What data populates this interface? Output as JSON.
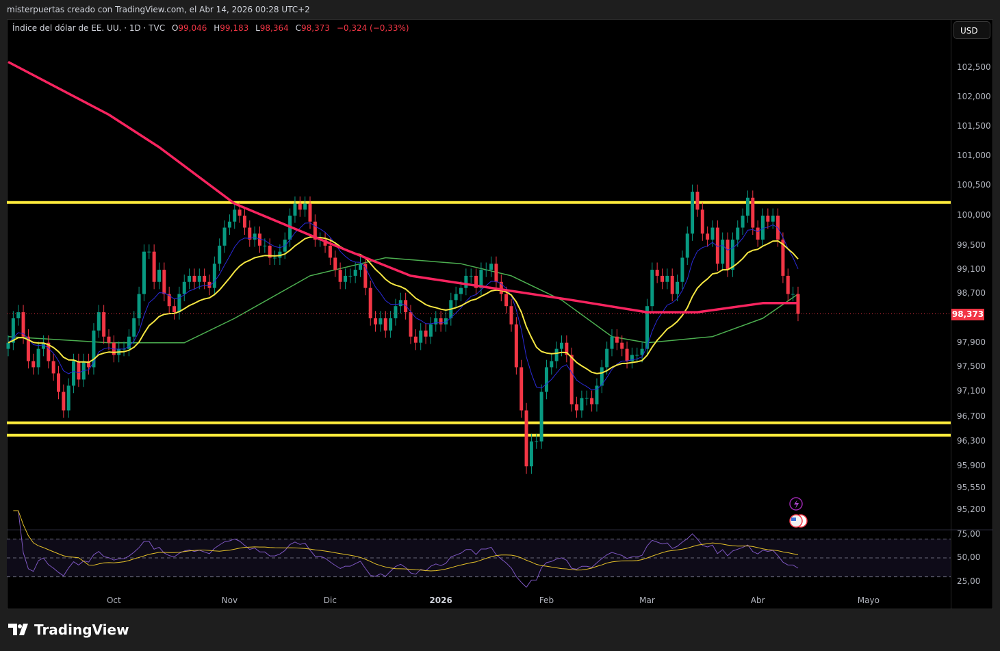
{
  "attribution": "misterpuertas creado con TradingView.com, el Abr 14, 2026 00:28 UTC+2",
  "legend": {
    "symbol": "Índice del dólar de EE. UU. · 1D · TVC",
    "o_label": "O",
    "o": "99,046",
    "h_label": "H",
    "h": "99,183",
    "l_label": "L",
    "l": "98,364",
    "c_label": "C",
    "c": "98,373",
    "change": "−0,324 (−0,33%)"
  },
  "currency_button": "USD",
  "last_price_label": "98,373",
  "brand": "TradingView",
  "colors": {
    "up": "#089981",
    "down": "#f23645",
    "ma200": "#f7245f",
    "ma50": "#4caf50",
    "ema_fast": "#2a2ad8",
    "ema_slow": "#f5e642",
    "level": "#ffeb3b",
    "rsi": "#7e57c2",
    "rsi_ma": "#e6c229"
  },
  "chart_data": {
    "type": "candlestick",
    "title": "Índice del dólar de EE. UU. · 1D · TVC",
    "scale": "log",
    "price_ticks": [
      102.5,
      102.0,
      101.5,
      101.0,
      100.5,
      100.0,
      99.5,
      99.1,
      98.7,
      97.9,
      97.5,
      97.1,
      96.7,
      96.3,
      95.9,
      95.55,
      95.2
    ],
    "price_tick_labels": [
      "102,500",
      "102,000",
      "101,500",
      "101,000",
      "100,500",
      "100,000",
      "99,500",
      "99,100",
      "98,700",
      "97,900",
      "97,500",
      "97,100",
      "96,700",
      "96,300",
      "95,900",
      "95,550",
      "95,200"
    ],
    "time_labels": [
      {
        "label": "Oct",
        "index": 21
      },
      {
        "label": "Nov",
        "index": 44
      },
      {
        "label": "Dic",
        "index": 64
      },
      {
        "label": "2026",
        "index": 86
      },
      {
        "label": "Feb",
        "index": 107
      },
      {
        "label": "Mar",
        "index": 127
      },
      {
        "label": "Abr",
        "index": 149
      },
      {
        "label": "Mayo",
        "index": 171
      }
    ],
    "first_open": 97.8,
    "closes": [
      97.9,
      98.3,
      98.4,
      98.0,
      97.6,
      97.5,
      97.8,
      97.9,
      97.6,
      97.4,
      97.1,
      96.8,
      97.2,
      97.6,
      97.3,
      97.6,
      97.5,
      98.1,
      98.4,
      98.0,
      97.9,
      97.7,
      97.8,
      97.8,
      98.0,
      98.3,
      98.7,
      99.4,
      99.4,
      98.9,
      99.1,
      98.7,
      98.5,
      98.4,
      98.7,
      98.9,
      99.0,
      98.9,
      99.0,
      98.9,
      98.8,
      99.2,
      99.5,
      99.8,
      99.9,
      100.1,
      100.0,
      99.8,
      99.6,
      99.7,
      99.5,
      99.5,
      99.3,
      99.3,
      99.4,
      99.6,
      100.0,
      100.2,
      100.1,
      100.2,
      99.9,
      99.6,
      99.6,
      99.5,
      99.3,
      99.1,
      98.9,
      99.0,
      99.0,
      99.1,
      99.2,
      98.8,
      98.3,
      98.2,
      98.3,
      98.1,
      98.3,
      98.5,
      98.6,
      98.4,
      98.0,
      97.9,
      98.1,
      98.0,
      98.2,
      98.3,
      98.2,
      98.3,
      98.6,
      98.7,
      98.8,
      99.0,
      99.0,
      98.8,
      99.1,
      99.1,
      99.2,
      98.9,
      98.7,
      98.5,
      98.2,
      97.5,
      96.8,
      95.9,
      96.3,
      96.3,
      97.1,
      97.5,
      97.6,
      97.8,
      97.9,
      97.7,
      96.9,
      96.8,
      97.0,
      97.0,
      96.9,
      97.2,
      97.5,
      97.8,
      98.0,
      97.9,
      97.8,
      97.6,
      97.7,
      97.7,
      97.8,
      98.5,
      99.1,
      99.0,
      98.9,
      99.0,
      98.7,
      98.9,
      99.3,
      99.7,
      100.4,
      100.1,
      99.7,
      99.6,
      99.8,
      99.2,
      99.6,
      99.1,
      99.6,
      99.8,
      100.0,
      100.3,
      99.8,
      99.6,
      100.0,
      99.9,
      100.0,
      99.6,
      99.0,
      98.7,
      98.7,
      98.373
    ],
    "ma200": [
      [
        0,
        102.6
      ],
      [
        20,
        101.7
      ],
      [
        30,
        101.15
      ],
      [
        45,
        100.2
      ],
      [
        65,
        99.5
      ],
      [
        80,
        99.0
      ],
      [
        100,
        98.75
      ],
      [
        112,
        98.6
      ],
      [
        127,
        98.4
      ],
      [
        137,
        98.4
      ],
      [
        150,
        98.55
      ],
      [
        157,
        98.55
      ]
    ],
    "ma50": [
      [
        0,
        98.0
      ],
      [
        20,
        97.9
      ],
      [
        35,
        97.9
      ],
      [
        45,
        98.3
      ],
      [
        60,
        99.0
      ],
      [
        75,
        99.3
      ],
      [
        90,
        99.2
      ],
      [
        100,
        99.0
      ],
      [
        110,
        98.6
      ],
      [
        120,
        98.0
      ],
      [
        127,
        97.9
      ],
      [
        140,
        98.0
      ],
      [
        150,
        98.3
      ],
      [
        157,
        98.7
      ]
    ],
    "ema_fast_period": 9,
    "ema_slow_period": 20,
    "horizontal_levels": [
      100.22,
      96.6,
      96.4
    ],
    "rsi": {
      "period": 14,
      "ma_period": 14,
      "ticks": [
        75,
        50,
        25
      ],
      "tick_labels": [
        "75,00",
        "50,00",
        "25,00"
      ],
      "bands": [
        70,
        50,
        30
      ]
    }
  }
}
